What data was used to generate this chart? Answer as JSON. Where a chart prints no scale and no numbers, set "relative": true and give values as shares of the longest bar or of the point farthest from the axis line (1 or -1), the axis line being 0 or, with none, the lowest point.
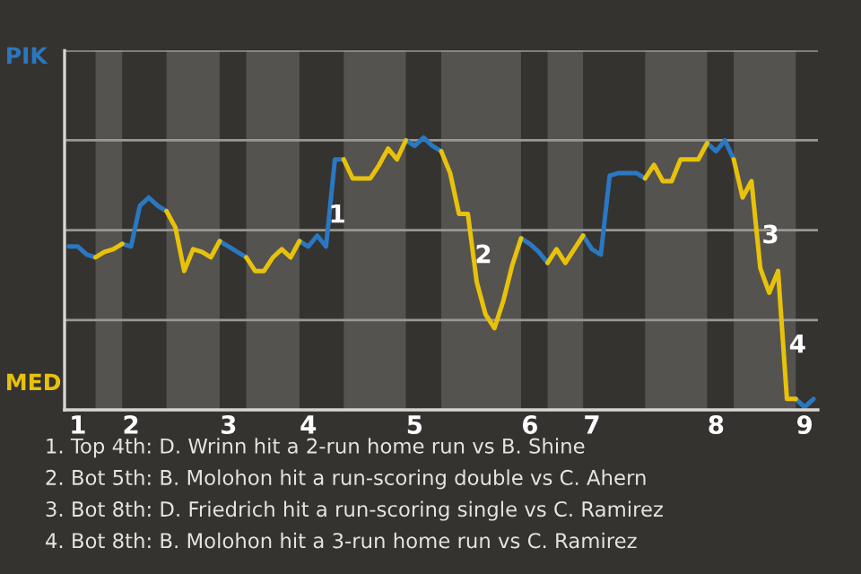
{
  "chart_data": {
    "type": "line",
    "relative": true,
    "categories": [
      null,
      "1",
      null,
      null,
      null,
      null,
      null,
      "2",
      null,
      null,
      null,
      null,
      null,
      null,
      null,
      null,
      null,
      null,
      "3",
      null,
      null,
      null,
      null,
      null,
      null,
      null,
      null,
      "4",
      null,
      null,
      null,
      null,
      null,
      null,
      null,
      null,
      null,
      null,
      null,
      "5",
      null,
      null,
      null,
      null,
      null,
      null,
      null,
      null,
      null,
      null,
      null,
      null,
      "6",
      null,
      null,
      null,
      null,
      null,
      null,
      "7",
      null,
      null,
      null,
      null,
      null,
      null,
      null,
      null,
      null,
      null,
      null,
      null,
      null,
      "8",
      null,
      null,
      null,
      null,
      null,
      null,
      null,
      null,
      null,
      "9",
      null
    ],
    "series": [
      {
        "name": "PIK",
        "color": "#2a78c2",
        "values": [
          0.6,
          0.6,
          0.57,
          0.56,
          null,
          null,
          0.61,
          0.6,
          0.75,
          0.78,
          0.75,
          0.73,
          null,
          null,
          null,
          null,
          null,
          0.62,
          0.6,
          0.58,
          0.56,
          null,
          null,
          null,
          null,
          null,
          0.62,
          0.6,
          0.64,
          0.6,
          0.92,
          0.92,
          null,
          null,
          null,
          null,
          null,
          null,
          0.99,
          0.97,
          1,
          0.97,
          0.95,
          null,
          null,
          null,
          null,
          null,
          null,
          null,
          null,
          0.63,
          0.61,
          0.58,
          0.54,
          null,
          null,
          null,
          0.64,
          0.59,
          0.57,
          0.86,
          0.87,
          0.87,
          0.87,
          0.85,
          null,
          null,
          null,
          null,
          null,
          null,
          0.98,
          0.95,
          0.99,
          0.92,
          null,
          null,
          null,
          null,
          null,
          null,
          0.04,
          0.01,
          0.04
        ]
      },
      {
        "name": "MED",
        "color": "#e8c20a",
        "values": [
          null,
          null,
          null,
          0.56,
          0.58,
          0.59,
          0.61,
          null,
          null,
          null,
          null,
          0.73,
          0.67,
          0.51,
          0.59,
          0.58,
          0.56,
          0.62,
          null,
          null,
          0.56,
          0.51,
          0.51,
          0.56,
          0.59,
          0.56,
          0.62,
          null,
          null,
          null,
          null,
          0.92,
          0.85,
          0.85,
          0.85,
          0.9,
          0.96,
          0.92,
          0.99,
          null,
          null,
          null,
          0.95,
          0.87,
          0.72,
          0.72,
          0.47,
          0.35,
          0.3,
          0.4,
          0.53,
          0.63,
          null,
          null,
          0.54,
          0.59,
          0.54,
          0.59,
          0.64,
          null,
          null,
          null,
          null,
          null,
          null,
          0.85,
          0.9,
          0.84,
          0.84,
          0.92,
          0.92,
          0.92,
          0.98,
          null,
          null,
          0.92,
          0.78,
          0.84,
          0.52,
          0.43,
          0.51,
          0.04,
          0.04,
          null,
          null
        ]
      }
    ],
    "ref_lines": [
      {
        "axis": "y",
        "value": 0.33,
        "color": "#9a9894"
      },
      {
        "axis": "y",
        "value": 0.66,
        "color": "#9a9894"
      },
      {
        "axis": "y",
        "value": 0.99,
        "color": "#9a9894"
      },
      {
        "axis": "y",
        "value": 1.32,
        "color": "#9a9894"
      }
    ],
    "legend": "left",
    "annotations": [
      {
        "text": "1"
      },
      {
        "text": "2"
      },
      {
        "text": "3"
      },
      {
        "text": "4"
      },
      "1. Top 4th: D. Wrinn hit a 2-run home run vs B. Shine",
      "2. Bot 5th: B. Molohon hit a run-scoring double vs C. Ahern",
      "3. Bot 8th: D. Friedrich hit a run-scoring single vs C. Ramirez",
      "4. Bot 8th: B. Molohon hit a 3-run home run vs C. Ramirez"
    ],
    "marker": "none",
    "line_style": "solid"
  }
}
